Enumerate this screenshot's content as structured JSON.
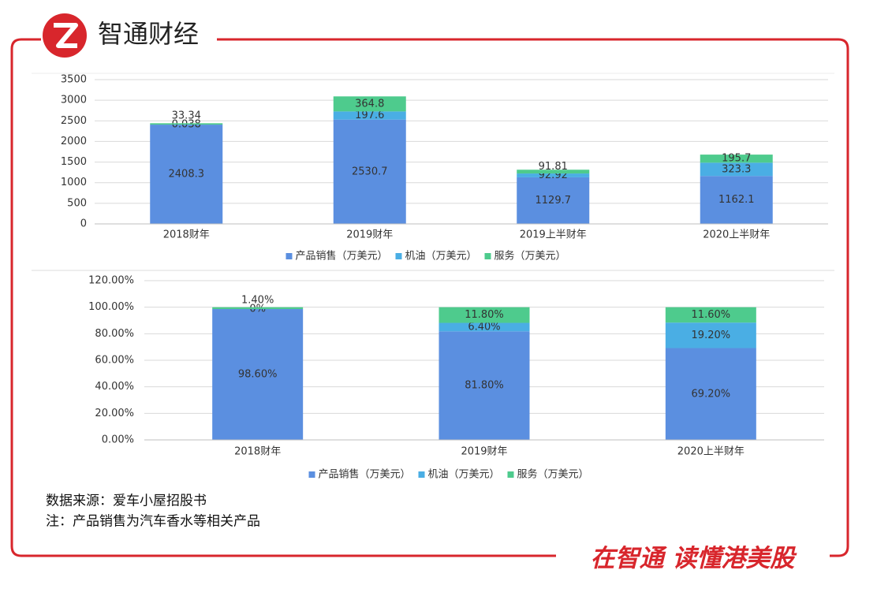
{
  "header": {
    "brand": "智通财经"
  },
  "chart_data": [
    {
      "type": "bar",
      "stacked": true,
      "categories": [
        "2018财年",
        "2019财年",
        "2019上半财年",
        "2020上半财年"
      ],
      "series": [
        {
          "name": "产品销售（万美元）",
          "color": "#5b8fe0",
          "values": [
            2408.3,
            2530.7,
            1129.7,
            1162.1
          ]
        },
        {
          "name": "机油（万美元）",
          "color": "#4aaee4",
          "values": [
            0.038,
            197.6,
            92.92,
            323.3
          ]
        },
        {
          "name": "服务（万美元）",
          "color": "#4ecb8d",
          "values": [
            33.34,
            364.8,
            91.81,
            195.7
          ]
        }
      ],
      "ylim": [
        0,
        3500
      ],
      "yticks": [
        0,
        500,
        1000,
        1500,
        2000,
        2500,
        3000,
        3500
      ],
      "grid": true
    },
    {
      "type": "bar",
      "stacked": true,
      "categories": [
        "2018财年",
        "2019财年",
        "2020上半财年"
      ],
      "series": [
        {
          "name": "产品销售（万美元）",
          "color": "#5b8fe0",
          "values": [
            98.6,
            81.8,
            69.2
          ],
          "value_labels": [
            "98.60%",
            "81.80%",
            "69.20%"
          ]
        },
        {
          "name": "机油（万美元）",
          "color": "#4aaee4",
          "values": [
            0,
            6.4,
            19.2
          ],
          "value_labels": [
            "0%",
            "6.40%",
            "19.20%"
          ]
        },
        {
          "name": "服务（万美元）",
          "color": "#4ecb8d",
          "values": [
            1.4,
            11.8,
            11.6
          ],
          "value_labels": [
            "1.40%",
            "11.80%",
            "11.60%"
          ]
        }
      ],
      "ylim": [
        0,
        120
      ],
      "yticks": [
        {
          "value": 0,
          "label": "0.00%"
        },
        {
          "value": 20,
          "label": "20.00%"
        },
        {
          "value": 40,
          "label": "40.00%"
        },
        {
          "value": 60,
          "label": "60.00%"
        },
        {
          "value": 80,
          "label": "80.00%"
        },
        {
          "value": 100,
          "label": "100.00%"
        },
        {
          "value": 120,
          "label": "120.00%"
        }
      ],
      "grid": true
    }
  ],
  "notes": [
    "数据来源：爱车小屋招股书",
    "注：产品销售为汽车香水等相关产品"
  ],
  "footer": {
    "slogan": "在智通 读懂港美股"
  }
}
